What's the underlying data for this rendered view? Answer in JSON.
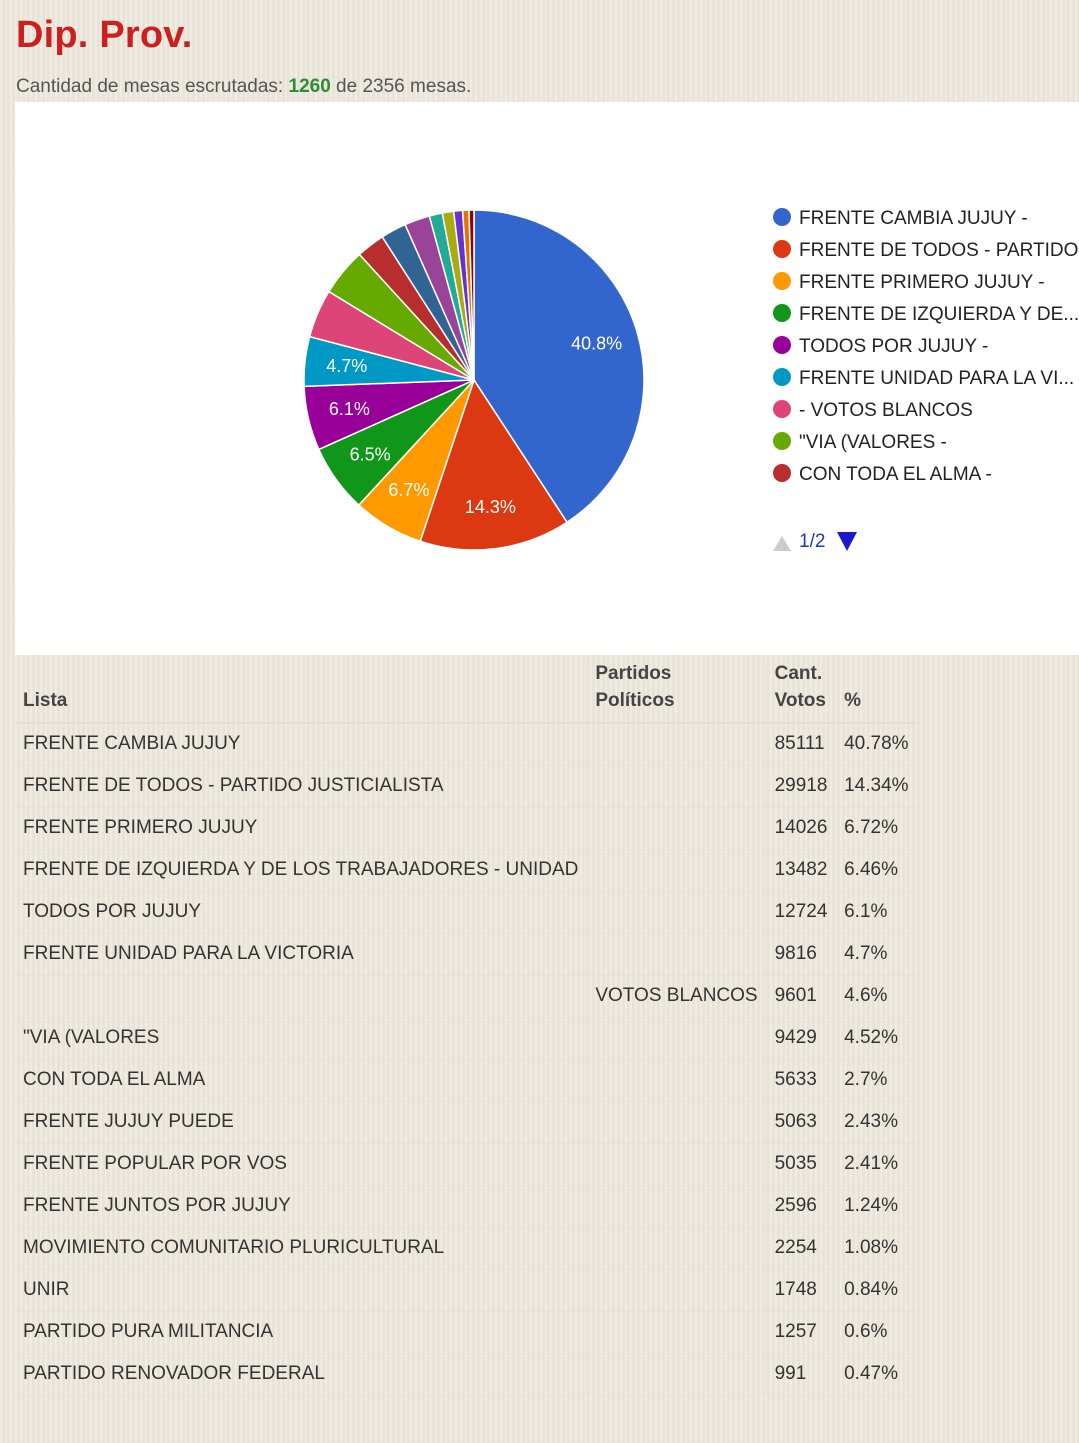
{
  "header": {
    "title": "Dip. Prov.",
    "subtitle_prefix": "Cantidad de mesas escrutadas: ",
    "mesas_escrutadas": "1260",
    "subtitle_middle": " de ",
    "mesas_total": "2356",
    "subtitle_suffix": " mesas."
  },
  "chart_data": {
    "type": "pie",
    "slices": [
      {
        "name": "FRENTE CAMBIA JUJUY -",
        "value": 40.78,
        "label": "40.8%",
        "color": "#3366cc"
      },
      {
        "name": "FRENTE DE TODOS - PARTIDO...",
        "value": 14.34,
        "label": "14.3%",
        "color": "#dc3912"
      },
      {
        "name": "FRENTE PRIMERO JUJUY -",
        "value": 6.72,
        "label": "6.7%",
        "color": "#ff9900"
      },
      {
        "name": "FRENTE DE IZQUIERDA Y DE...",
        "value": 6.46,
        "label": "6.5%",
        "color": "#109618"
      },
      {
        "name": "TODOS POR JUJUY -",
        "value": 6.1,
        "label": "6.1%",
        "color": "#990099"
      },
      {
        "name": "FRENTE UNIDAD PARA LA VI...",
        "value": 4.7,
        "label": "4.7%",
        "color": "#0099c6"
      },
      {
        "name": "- VOTOS BLANCOS",
        "value": 4.6,
        "label": "",
        "color": "#dd4477"
      },
      {
        "name": "\"VIA (VALORES -",
        "value": 4.52,
        "label": "",
        "color": "#66aa00"
      },
      {
        "name": "CON TODA EL ALMA -",
        "value": 2.7,
        "label": "",
        "color": "#b82e2e"
      },
      {
        "name": "",
        "value": 2.43,
        "label": "",
        "color": "#316395"
      },
      {
        "name": "",
        "value": 2.41,
        "label": "",
        "color": "#994499"
      },
      {
        "name": "",
        "value": 1.24,
        "label": "",
        "color": "#22aa99"
      },
      {
        "name": "",
        "value": 1.08,
        "label": "",
        "color": "#aaaa11"
      },
      {
        "name": "",
        "value": 0.84,
        "label": "",
        "color": "#6633cc"
      },
      {
        "name": "",
        "value": 0.6,
        "label": "",
        "color": "#e67300"
      },
      {
        "name": "",
        "value": 0.47,
        "label": "",
        "color": "#8b0707"
      }
    ],
    "legend_visible_count": 9,
    "legend_placement": "right",
    "pager": "1/2"
  },
  "table": {
    "headers": {
      "lista": "Lista",
      "partidos_line1": "Partidos",
      "partidos_line2": "Políticos",
      "votos_line1": "Cant.",
      "votos_line2": "Votos",
      "pct": "%"
    },
    "rows": [
      {
        "lista": "FRENTE CAMBIA JUJUY",
        "partido": "",
        "votos": "85111",
        "pct": "40.78%"
      },
      {
        "lista": "FRENTE DE TODOS - PARTIDO JUSTICIALISTA",
        "partido": "",
        "votos": "29918",
        "pct": "14.34%"
      },
      {
        "lista": "FRENTE PRIMERO JUJUY",
        "partido": "",
        "votos": "14026",
        "pct": "6.72%"
      },
      {
        "lista": "FRENTE DE IZQUIERDA Y DE LOS TRABAJADORES - UNIDAD",
        "partido": "",
        "votos": "13482",
        "pct": "6.46%"
      },
      {
        "lista": "TODOS POR JUJUY",
        "partido": "",
        "votos": "12724",
        "pct": "6.1%"
      },
      {
        "lista": "FRENTE UNIDAD PARA LA VICTORIA",
        "partido": "",
        "votos": "9816",
        "pct": "4.7%"
      },
      {
        "lista": "",
        "partido": "VOTOS BLANCOS",
        "votos": "9601",
        "pct": "4.6%"
      },
      {
        "lista": "\"VIA (VALORES",
        "partido": "",
        "votos": "9429",
        "pct": "4.52%"
      },
      {
        "lista": "CON TODA EL ALMA",
        "partido": "",
        "votos": "5633",
        "pct": "2.7%"
      },
      {
        "lista": "FRENTE JUJUY PUEDE",
        "partido": "",
        "votos": "5063",
        "pct": "2.43%"
      },
      {
        "lista": "FRENTE POPULAR POR VOS",
        "partido": "",
        "votos": "5035",
        "pct": "2.41%"
      },
      {
        "lista": "FRENTE JUNTOS POR JUJUY",
        "partido": "",
        "votos": "2596",
        "pct": "1.24%"
      },
      {
        "lista": "MOVIMIENTO COMUNITARIO PLURICULTURAL",
        "partido": "",
        "votos": "2254",
        "pct": "1.08%"
      },
      {
        "lista": "UNIR",
        "partido": "",
        "votos": "1748",
        "pct": "0.84%"
      },
      {
        "lista": "PARTIDO PURA MILITANCIA",
        "partido": "",
        "votos": "1257",
        "pct": "0.6%"
      },
      {
        "lista": "PARTIDO RENOVADOR FEDERAL",
        "partido": "",
        "votos": "991",
        "pct": "0.47%"
      }
    ]
  }
}
